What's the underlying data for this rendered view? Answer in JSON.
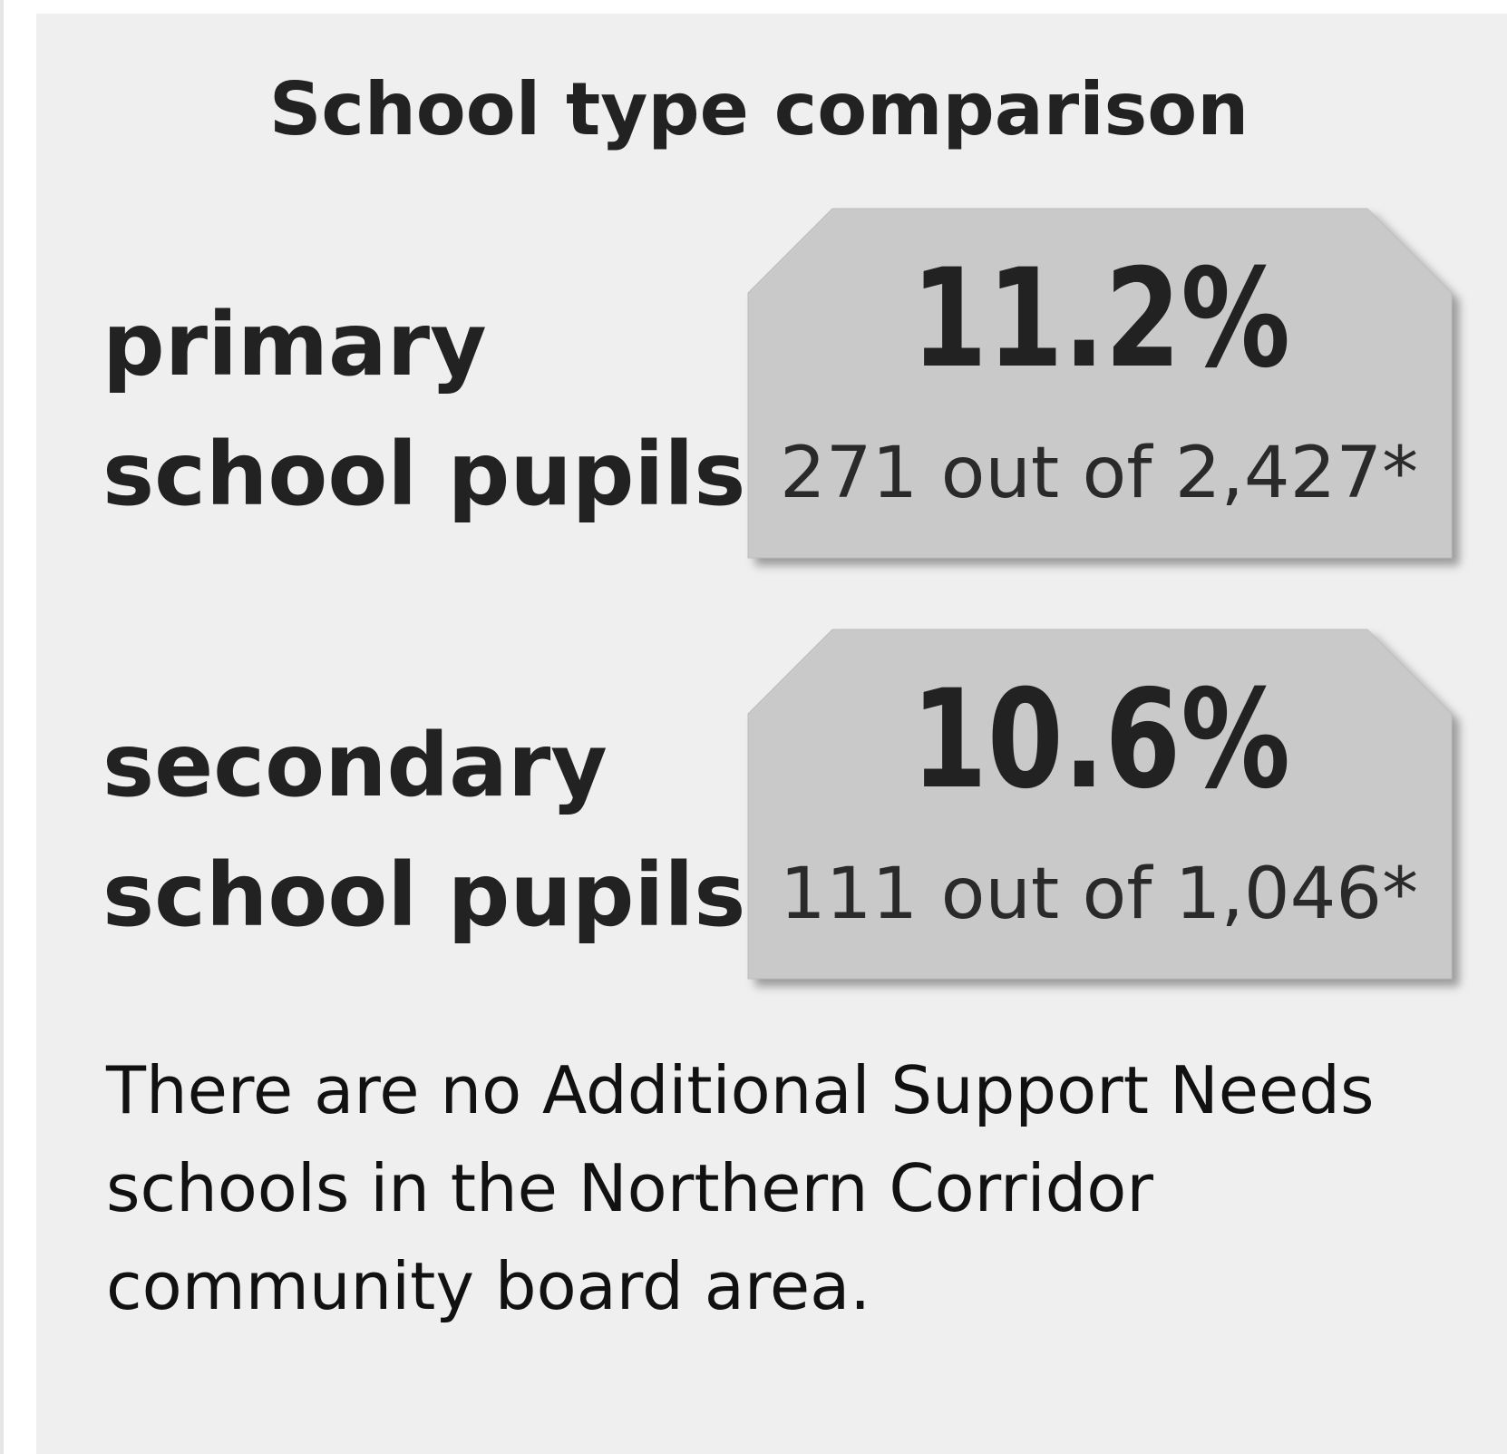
{
  "title": "School type comparison",
  "rows": [
    {
      "label": [
        "primary",
        "school pupils"
      ],
      "percent": "11.2%",
      "detail": "271 out of 2,427*"
    },
    {
      "label": [
        "secondary",
        "school pupils"
      ],
      "percent": "10.6%",
      "detail": "111 out of 1,046*"
    }
  ],
  "note": [
    "There are no Additional Support Needs",
    "schools in the Northern Corridor",
    "community board area."
  ]
}
